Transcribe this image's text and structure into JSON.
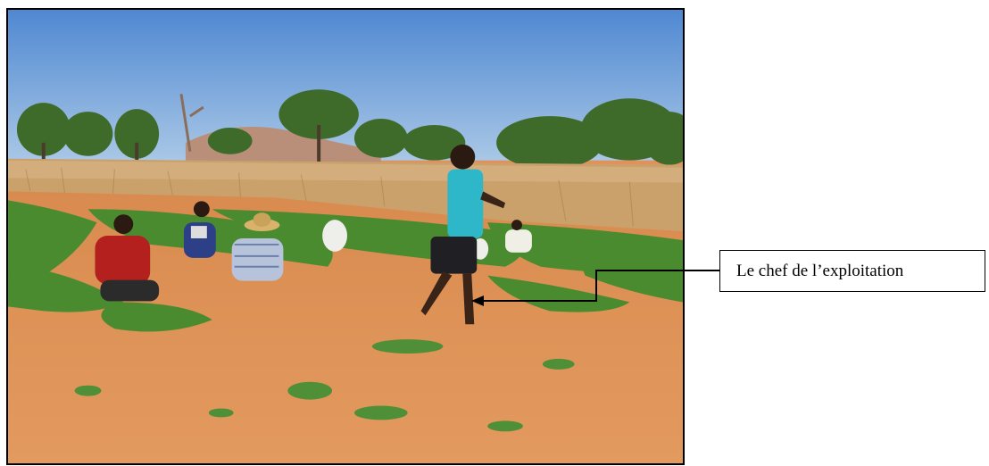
{
  "photo": {
    "subject": "field-workers-photo",
    "colors": {
      "sky": "#5a93d6",
      "soil": "#d9834a",
      "crops": "#3f8b2d",
      "dry_grass": "#c9a26a"
    }
  },
  "annotation": {
    "label": "Le chef de l’exploitation"
  }
}
